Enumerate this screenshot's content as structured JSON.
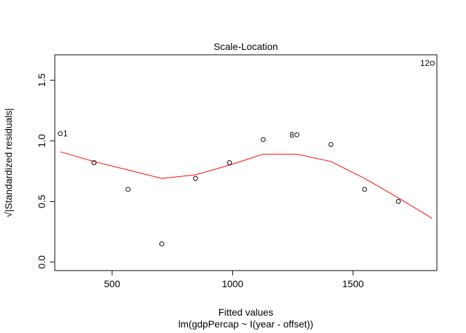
{
  "chart_data": {
    "type": "scatter",
    "title": "Scale-Location",
    "xlabel": "Fitted values",
    "subtitle": "lm(gdpPercap ~ I(year - offset))",
    "ylabel": "√|Standardized residuals|",
    "xlim": [
      262,
      1848
    ],
    "ylim": [
      -0.07,
      1.71
    ],
    "x_ticks": [
      500,
      1000,
      1500
    ],
    "y_ticks": [
      0.0,
      0.5,
      1.0,
      1.5
    ],
    "x_tick_labels": [
      "500",
      "1000",
      "1500"
    ],
    "y_tick_labels": [
      "0.0",
      "0.5",
      "1.0",
      "1.5"
    ],
    "grid": false,
    "points": [
      {
        "x": 285,
        "y": 1.06,
        "label": "1"
      },
      {
        "x": 425,
        "y": 0.82,
        "label": ""
      },
      {
        "x": 566,
        "y": 0.6,
        "label": ""
      },
      {
        "x": 706,
        "y": 0.15,
        "label": ""
      },
      {
        "x": 846,
        "y": 0.69,
        "label": ""
      },
      {
        "x": 987,
        "y": 0.82,
        "label": ""
      },
      {
        "x": 1127,
        "y": 1.01,
        "label": ""
      },
      {
        "x": 1267,
        "y": 1.05,
        "label": "8"
      },
      {
        "x": 1408,
        "y": 0.97,
        "label": ""
      },
      {
        "x": 1548,
        "y": 0.6,
        "label": ""
      },
      {
        "x": 1688,
        "y": 0.5,
        "label": ""
      },
      {
        "x": 1829,
        "y": 1.64,
        "label": "12"
      }
    ],
    "smoother": {
      "color": "#ff0000",
      "x": [
        285,
        425,
        566,
        706,
        846,
        987,
        1127,
        1267,
        1408,
        1548,
        1688,
        1829
      ],
      "y": [
        0.91,
        0.83,
        0.76,
        0.69,
        0.72,
        0.8,
        0.89,
        0.89,
        0.83,
        0.69,
        0.53,
        0.36
      ]
    }
  }
}
